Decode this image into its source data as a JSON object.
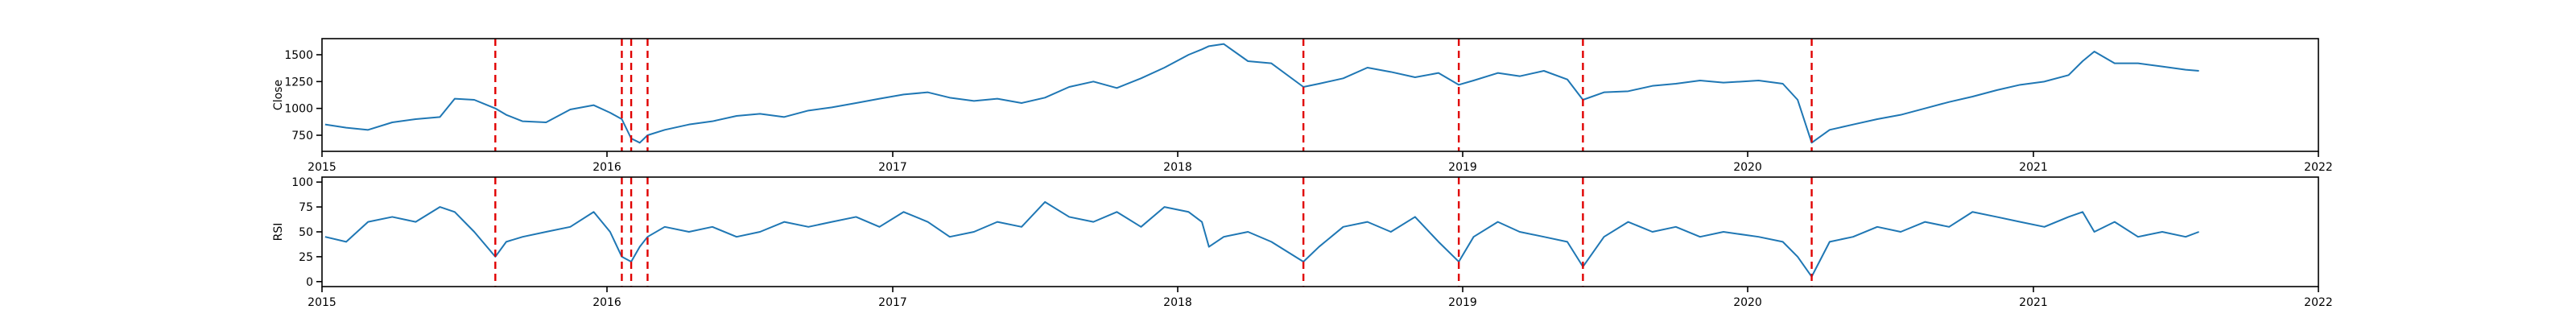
{
  "chart_data": [
    {
      "type": "line",
      "ylabel": "Close",
      "xlim": [
        "2015-01-01",
        "2022-01-01"
      ],
      "ylim": [
        600,
        1650
      ],
      "yticks": [
        750,
        1000,
        1250,
        1500
      ],
      "xticks": [
        "2015",
        "2016",
        "2017",
        "2018",
        "2019",
        "2020",
        "2021",
        "2022"
      ],
      "event_dates": [
        "2015-08-11",
        "2016-01-20",
        "2016-02-01",
        "2016-02-22",
        "2018-06-11",
        "2018-12-27",
        "2019-06-04",
        "2020-03-23"
      ],
      "series": [
        {
          "color": "#1f77b4",
          "x": [
            "2015-01-05",
            "2015-02-01",
            "2015-03-01",
            "2015-04-01",
            "2015-05-01",
            "2015-06-01",
            "2015-06-20",
            "2015-07-15",
            "2015-08-11",
            "2015-08-25",
            "2015-09-15",
            "2015-10-15",
            "2015-11-15",
            "2015-12-15",
            "2016-01-05",
            "2016-01-20",
            "2016-02-01",
            "2016-02-12",
            "2016-02-22",
            "2016-03-15",
            "2016-04-15",
            "2016-05-15",
            "2016-06-15",
            "2016-07-15",
            "2016-08-15",
            "2016-09-15",
            "2016-10-15",
            "2016-11-15",
            "2016-12-15",
            "2017-01-15",
            "2017-02-15",
            "2017-03-15",
            "2017-04-15",
            "2017-05-15",
            "2017-06-15",
            "2017-07-15",
            "2017-08-15",
            "2017-09-15",
            "2017-10-15",
            "2017-11-15",
            "2017-12-15",
            "2018-01-15",
            "2018-02-01",
            "2018-02-10",
            "2018-03-01",
            "2018-04-01",
            "2018-05-01",
            "2018-06-11",
            "2018-07-01",
            "2018-08-01",
            "2018-09-01",
            "2018-10-01",
            "2018-11-01",
            "2018-12-01",
            "2018-12-27",
            "2019-01-15",
            "2019-02-15",
            "2019-03-15",
            "2019-04-15",
            "2019-05-15",
            "2019-06-04",
            "2019-07-01",
            "2019-08-01",
            "2019-09-01",
            "2019-10-01",
            "2019-11-01",
            "2019-12-01",
            "2020-01-15",
            "2020-02-15",
            "2020-03-05",
            "2020-03-23",
            "2020-04-15",
            "2020-05-15",
            "2020-06-15",
            "2020-07-15",
            "2020-08-15",
            "2020-09-15",
            "2020-10-15",
            "2020-11-15",
            "2020-12-15",
            "2021-01-15",
            "2021-02-15",
            "2021-03-05",
            "2021-03-20",
            "2021-04-15",
            "2021-05-15",
            "2021-06-15",
            "2021-07-15",
            "2021-08-01"
          ],
          "values": [
            850,
            820,
            800,
            870,
            900,
            920,
            1090,
            1080,
            1000,
            940,
            880,
            870,
            990,
            1030,
            960,
            900,
            720,
            680,
            750,
            800,
            850,
            880,
            930,
            950,
            920,
            980,
            1010,
            1050,
            1090,
            1130,
            1150,
            1100,
            1070,
            1090,
            1050,
            1100,
            1200,
            1250,
            1190,
            1280,
            1380,
            1500,
            1550,
            1580,
            1600,
            1440,
            1420,
            1200,
            1230,
            1280,
            1380,
            1340,
            1290,
            1330,
            1220,
            1260,
            1330,
            1300,
            1350,
            1270,
            1080,
            1150,
            1160,
            1210,
            1230,
            1260,
            1240,
            1260,
            1230,
            1080,
            680,
            800,
            850,
            900,
            940,
            1000,
            1060,
            1110,
            1170,
            1220,
            1250,
            1310,
            1440,
            1530,
            1420,
            1420,
            1390,
            1360,
            1350
          ]
        }
      ]
    },
    {
      "type": "line",
      "ylabel": "RSI",
      "xlim": [
        "2015-01-01",
        "2022-01-01"
      ],
      "ylim": [
        -5,
        105
      ],
      "yticks": [
        0,
        25,
        50,
        75,
        100
      ],
      "xticks": [
        "2015",
        "2016",
        "2017",
        "2018",
        "2019",
        "2020",
        "2021",
        "2022"
      ],
      "event_dates": [
        "2015-08-11",
        "2016-01-20",
        "2016-02-01",
        "2016-02-22",
        "2018-06-11",
        "2018-12-27",
        "2019-06-04",
        "2020-03-23"
      ],
      "series": [
        {
          "color": "#1f77b4",
          "x": [
            "2015-01-05",
            "2015-02-01",
            "2015-03-01",
            "2015-04-01",
            "2015-05-01",
            "2015-06-01",
            "2015-06-20",
            "2015-07-15",
            "2015-08-11",
            "2015-08-25",
            "2015-09-15",
            "2015-10-15",
            "2015-11-15",
            "2015-12-15",
            "2016-01-05",
            "2016-01-20",
            "2016-02-01",
            "2016-02-12",
            "2016-02-22",
            "2016-03-15",
            "2016-04-15",
            "2016-05-15",
            "2016-06-15",
            "2016-07-15",
            "2016-08-15",
            "2016-09-15",
            "2016-10-15",
            "2016-11-15",
            "2016-12-15",
            "2017-01-15",
            "2017-02-15",
            "2017-03-15",
            "2017-04-15",
            "2017-05-15",
            "2017-06-15",
            "2017-07-15",
            "2017-08-15",
            "2017-09-15",
            "2017-10-15",
            "2017-11-15",
            "2017-12-15",
            "2018-01-15",
            "2018-02-01",
            "2018-02-10",
            "2018-03-01",
            "2018-04-01",
            "2018-05-01",
            "2018-06-11",
            "2018-07-01",
            "2018-08-01",
            "2018-09-01",
            "2018-10-01",
            "2018-11-01",
            "2018-12-01",
            "2018-12-27",
            "2019-01-15",
            "2019-02-15",
            "2019-03-15",
            "2019-04-15",
            "2019-05-15",
            "2019-06-04",
            "2019-07-01",
            "2019-08-01",
            "2019-09-01",
            "2019-10-01",
            "2019-11-01",
            "2019-12-01",
            "2020-01-15",
            "2020-02-15",
            "2020-03-05",
            "2020-03-23",
            "2020-04-15",
            "2020-05-15",
            "2020-06-15",
            "2020-07-15",
            "2020-08-15",
            "2020-09-15",
            "2020-10-15",
            "2020-11-15",
            "2020-12-15",
            "2021-01-15",
            "2021-02-15",
            "2021-03-05",
            "2021-03-20",
            "2021-04-15",
            "2021-05-15",
            "2021-06-15",
            "2021-07-15",
            "2021-08-01"
          ],
          "values": [
            45,
            40,
            60,
            65,
            60,
            75,
            70,
            50,
            25,
            40,
            45,
            50,
            55,
            70,
            50,
            25,
            20,
            35,
            45,
            55,
            50,
            55,
            45,
            50,
            60,
            55,
            60,
            65,
            55,
            70,
            60,
            45,
            50,
            60,
            55,
            80,
            65,
            60,
            70,
            55,
            75,
            70,
            60,
            35,
            45,
            50,
            40,
            20,
            35,
            55,
            60,
            50,
            65,
            40,
            20,
            45,
            60,
            50,
            45,
            40,
            15,
            45,
            60,
            50,
            55,
            45,
            50,
            45,
            40,
            25,
            5,
            40,
            45,
            55,
            50,
            60,
            55,
            70,
            65,
            60,
            55,
            65,
            70,
            50,
            60,
            45,
            50,
            45,
            50
          ]
        }
      ]
    }
  ]
}
